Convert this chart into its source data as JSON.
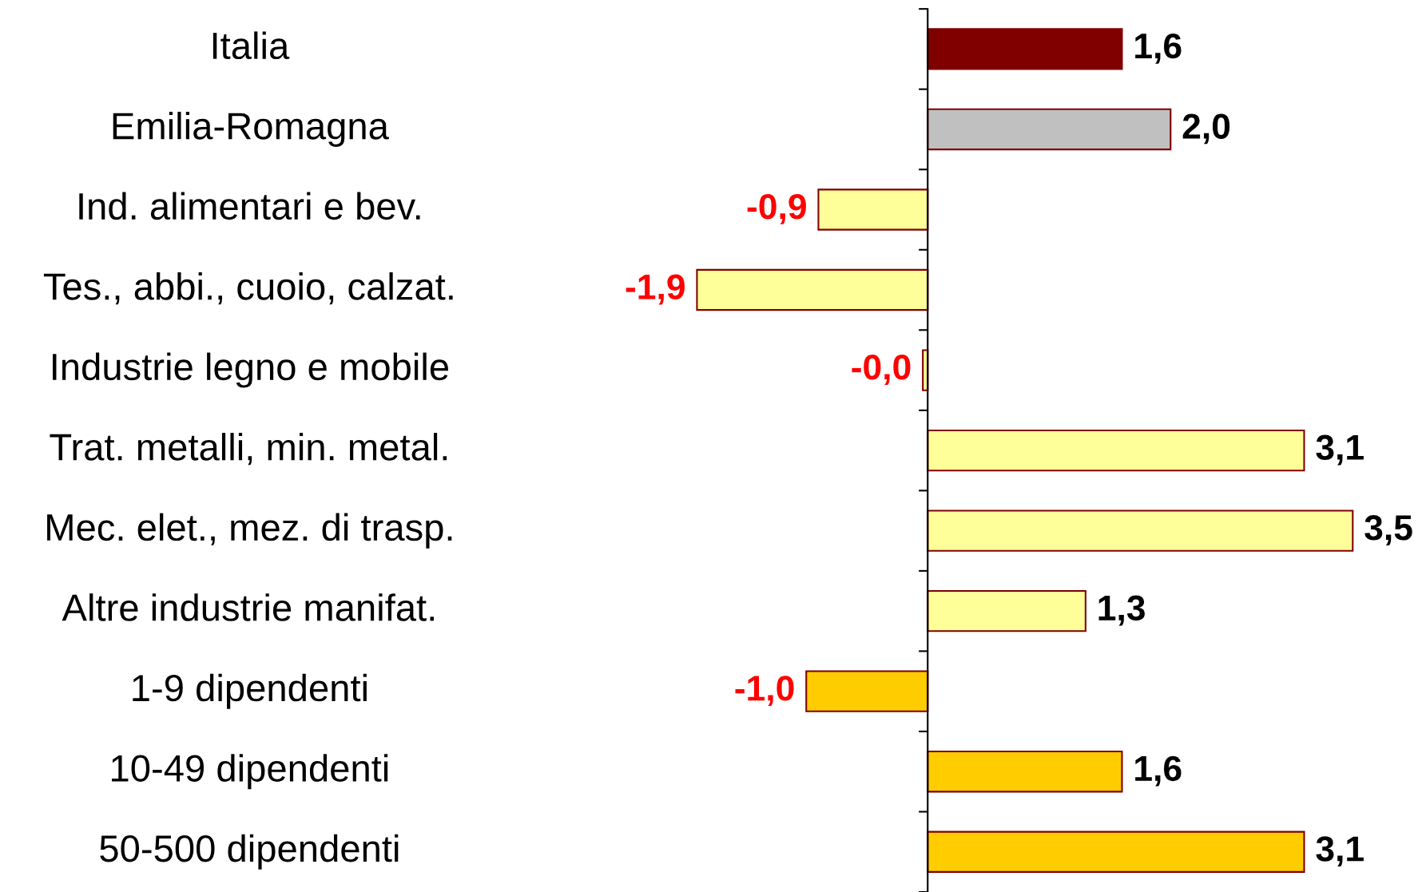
{
  "chart_data": {
    "type": "bar",
    "orientation": "horizontal",
    "categories": [
      "Italia",
      "Emilia-Romagna",
      "Ind. alimentari e bev.",
      "Tes., abbi., cuoio, calzat.",
      "Industrie legno e mobile",
      "Trat. metalli, min. metal.",
      "Mec. elet., mez. di trasp.",
      "Altre industrie manifat.",
      "1-9 dipendenti",
      "10-49 dipendenti",
      "50-500 dipendenti"
    ],
    "values": [
      1.6,
      2.0,
      -0.9,
      -1.9,
      -0.04,
      3.1,
      3.5,
      1.3,
      -1.0,
      1.6,
      3.1
    ],
    "colors": [
      "#800000",
      "#c0c0c0",
      "#ffff99",
      "#ffff99",
      "#ffff99",
      "#ffff99",
      "#ffff99",
      "#ffff99",
      "#ffcc00",
      "#ffcc00",
      "#ffcc00"
    ],
    "value_labels": [
      "1,6",
      "2,0",
      "-0,9",
      "-1,9",
      "-0,0",
      "3,1",
      "3,5",
      "1,3",
      "-1,0",
      "1,6",
      "3,1"
    ],
    "grid": false,
    "legend": false
  }
}
